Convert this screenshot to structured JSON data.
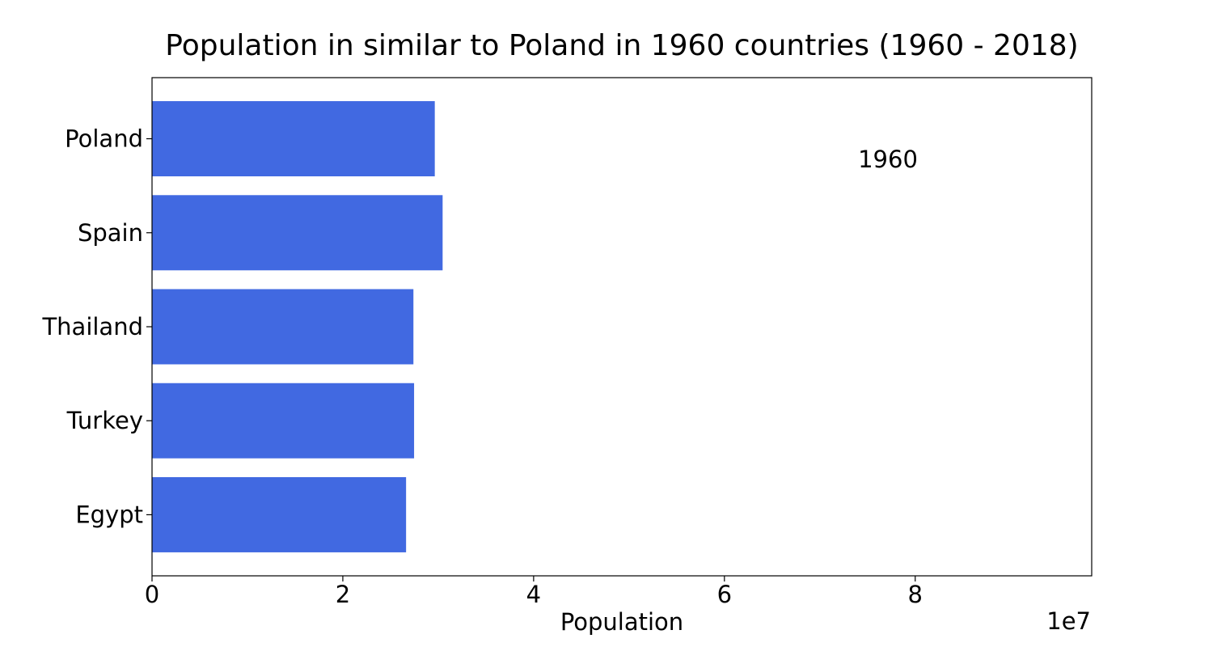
{
  "chart_data": {
    "type": "bar",
    "orientation": "horizontal",
    "title": "Population in similar to Poland in 1960 countries (1960 - 2018)",
    "categories": [
      "Poland",
      "Spain",
      "Thailand",
      "Turkey",
      "Egypt"
    ],
    "series": [
      {
        "values": [
          29640000,
          30460000,
          27400000,
          27470000,
          26630000
        ]
      }
    ],
    "xlabel": "Population",
    "ylabel": "",
    "xlim": [
      0,
      98500000
    ],
    "xticks": [
      0,
      20000000,
      40000000,
      60000000,
      80000000
    ],
    "xtick_labels": [
      "0",
      "2",
      "4",
      "6",
      "8"
    ],
    "x_offset_label": "1e7",
    "annotation": "1960",
    "bar_color": "#4169e1",
    "grid": false,
    "legend": "none"
  }
}
